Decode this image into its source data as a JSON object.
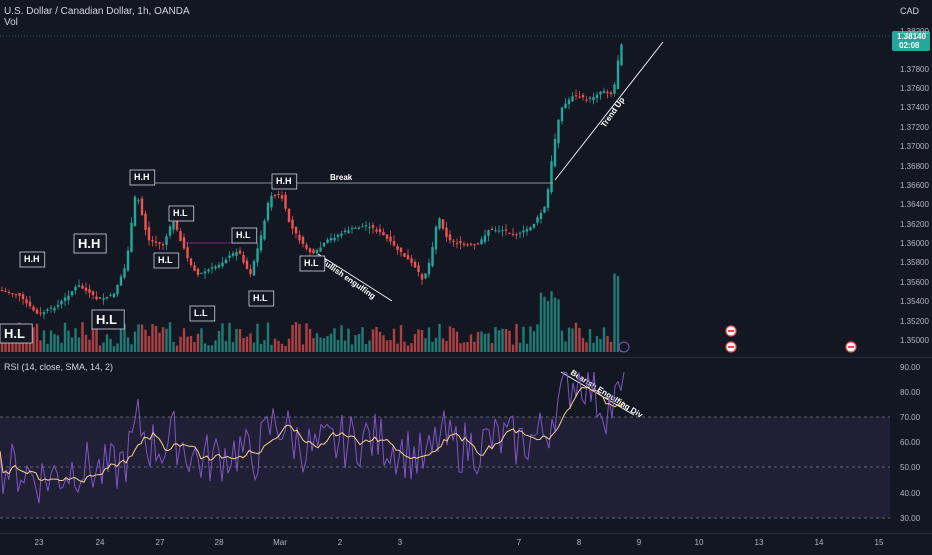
{
  "header": {
    "symbol_line": "U.S. Dollar / Canadian Dollar, 1h, OANDA",
    "volume_label": "Vol",
    "currency": "CAD"
  },
  "price_axis": {
    "ticks": [
      "1.38200",
      "1.37800",
      "1.37600",
      "1.37400",
      "1.37200",
      "1.37000",
      "1.36800",
      "1.36600",
      "1.36400",
      "1.36200",
      "1.36000",
      "1.35800",
      "1.35600",
      "1.35400",
      "1.35200",
      "1.35000"
    ],
    "current_price": "1.38140",
    "countdown": "02:08"
  },
  "rsi": {
    "label": "RSI (14, close, SMA, 14, 2)",
    "ticks": [
      "90.00",
      "80.00",
      "70.00",
      "60.00",
      "50.00",
      "40.00",
      "30.00"
    ]
  },
  "time_axis": {
    "labels": [
      "23",
      "24",
      "27",
      "28",
      "Mar",
      "2",
      "3",
      "7",
      "8",
      "9",
      "10",
      "13",
      "14",
      "15"
    ]
  },
  "annotations": {
    "hh": "H.H",
    "hl": "H.L",
    "ll": "L.L",
    "break": "Break",
    "trend_up": "Trend Up",
    "bullish_engulfing": "Bullish engulfing",
    "bearish_div": "Bearish Engulfing Div"
  },
  "colors": {
    "background": "#131722",
    "up": "#26a69a",
    "down": "#ef5350",
    "rsi_line": "#7e57c2",
    "rsi_ma": "#f5d38a",
    "price_tag": "#26a69a"
  },
  "icons": [
    "flag-canada-icon",
    "flag-canada-icon",
    "flag-canada-icon"
  ]
}
